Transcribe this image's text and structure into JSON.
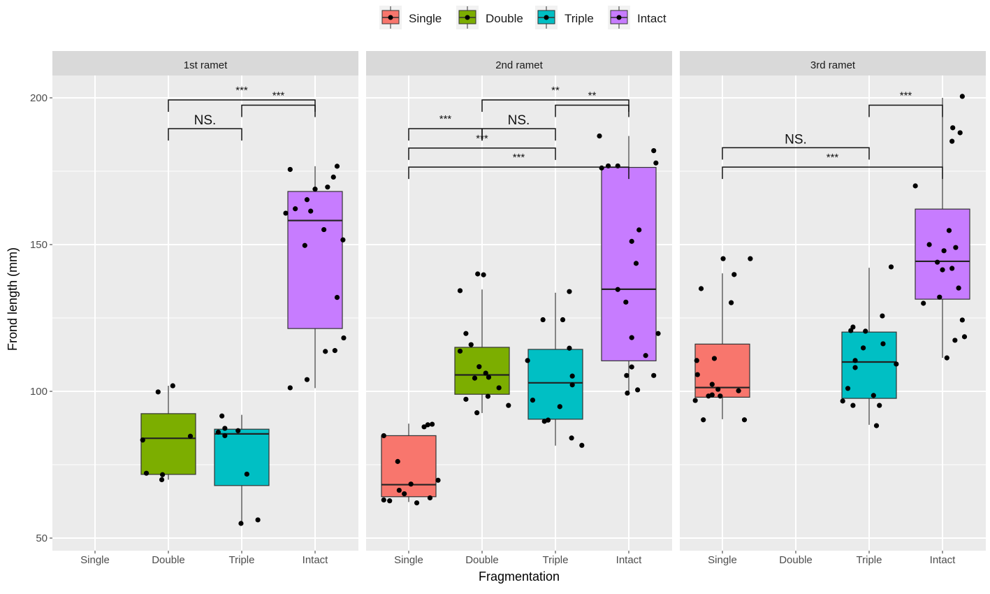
{
  "chart_data": {
    "type": "boxplot",
    "xlabel": "Fragmentation",
    "ylabel": "Frond length (mm)",
    "ylim": [
      47,
      207
    ],
    "yticks": [
      50,
      100,
      150,
      200
    ],
    "categories": [
      "Single",
      "Double",
      "Triple",
      "Intact"
    ],
    "colors": {
      "Single": "#F8766D",
      "Double": "#7CAE00",
      "Triple": "#00BFC4",
      "Intact": "#C77CFF"
    },
    "legend": {
      "position": "top",
      "items": [
        "Single",
        "Double",
        "Triple",
        "Intact"
      ]
    },
    "grid": true,
    "panels": [
      {
        "title": "1st ramet",
        "boxes": [
          {
            "category": "Double",
            "min": 69.9,
            "q1": 71.7,
            "median": 84.0,
            "q3": 92.4,
            "max": 101.9
          },
          {
            "category": "Triple",
            "min": 55.0,
            "q1": 67.9,
            "median": 85.5,
            "q3": 87.1,
            "max": 92.0
          },
          {
            "category": "Intact",
            "min": 101.1,
            "q1": 121.4,
            "median": 158.2,
            "q3": 168.1,
            "max": 176.7
          }
        ],
        "points": {
          "Double": [
            [
              -0.35,
              83.4
            ],
            [
              -0.3,
              72.1
            ],
            [
              -0.08,
              71.6
            ],
            [
              -0.09,
              69.9
            ],
            [
              -0.14,
              99.8
            ],
            [
              0.06,
              101.9
            ],
            [
              0.3,
              84.7
            ]
          ],
          "Triple": [
            [
              -0.27,
              91.6
            ],
            [
              -0.23,
              87.4
            ],
            [
              -0.32,
              86.1
            ],
            [
              -0.05,
              86.6
            ],
            [
              -0.23,
              84.9
            ],
            [
              0.07,
              71.8
            ],
            [
              -0.01,
              55.0
            ],
            [
              0.22,
              56.2
            ]
          ],
          "Intact": [
            [
              -0.34,
              175.6
            ],
            [
              0.3,
              176.7
            ],
            [
              0.25,
              173.0
            ],
            [
              0.17,
              169.6
            ],
            [
              0,
              168.9
            ],
            [
              -0.11,
              165.3
            ],
            [
              -0.27,
              162.2
            ],
            [
              -0.06,
              161.4
            ],
            [
              -0.4,
              160.7
            ],
            [
              0.12,
              155.1
            ],
            [
              0.38,
              151.6
            ],
            [
              -0.14,
              149.7
            ],
            [
              0.3,
              132.0
            ],
            [
              0.39,
              118.2
            ],
            [
              0.14,
              113.6
            ],
            [
              0.27,
              113.9
            ],
            [
              -0.11,
              104.0
            ],
            [
              -0.34,
              101.2
            ]
          ]
        },
        "brackets": [
          {
            "from": "Double",
            "to": "Intact",
            "y": 199.3,
            "label": "***"
          },
          {
            "from": "Triple",
            "to": "Intact",
            "y": 197.5,
            "label": "***"
          },
          {
            "from": "Double",
            "to": "Triple",
            "y": 189.5,
            "label": "NS."
          }
        ]
      },
      {
        "title": "2nd ramet",
        "boxes": [
          {
            "category": "Single",
            "min": 62.3,
            "q1": 64.1,
            "median": 68.2,
            "q3": 84.9,
            "max": 89.0
          },
          {
            "category": "Double",
            "min": 92.6,
            "q1": 99.0,
            "median": 105.6,
            "q3": 115.0,
            "max": 134.7
          },
          {
            "category": "Triple",
            "min": 81.5,
            "q1": 90.5,
            "median": 102.9,
            "q3": 114.3,
            "max": 133.6
          },
          {
            "category": "Intact",
            "min": 99.4,
            "q1": 110.4,
            "median": 134.8,
            "q3": 176.3,
            "max": 187.0
          }
        ],
        "points": {
          "Single": [
            [
              -0.34,
              84.9
            ],
            [
              -0.15,
              76.1
            ],
            [
              0.21,
              87.9
            ],
            [
              0.26,
              88.6
            ],
            [
              0.32,
              88.8
            ],
            [
              0.4,
              69.7
            ],
            [
              0.03,
              68.4
            ],
            [
              -0.13,
              66.3
            ],
            [
              -0.06,
              65.1
            ],
            [
              0.29,
              63.7
            ],
            [
              -0.34,
              63.0
            ],
            [
              -0.26,
              62.7
            ],
            [
              0.11,
              62.0
            ]
          ],
          "Double": [
            [
              -0.06,
              140.0
            ],
            [
              0.02,
              139.7
            ],
            [
              -0.3,
              134.3
            ],
            [
              -0.22,
              119.7
            ],
            [
              -0.15,
              115.9
            ],
            [
              -0.3,
              113.7
            ],
            [
              -0.04,
              108.4
            ],
            [
              0.05,
              106.2
            ],
            [
              -0.1,
              104.5
            ],
            [
              0.09,
              104.8
            ],
            [
              0.23,
              101.2
            ],
            [
              -0.22,
              97.3
            ],
            [
              0.08,
              98.3
            ],
            [
              0.36,
              95.2
            ],
            [
              -0.07,
              92.7
            ]
          ],
          "Triple": [
            [
              0.19,
              134.0
            ],
            [
              -0.17,
              124.4
            ],
            [
              0.1,
              124.4
            ],
            [
              0.19,
              114.7
            ],
            [
              -0.38,
              110.5
            ],
            [
              0.23,
              105.2
            ],
            [
              0.23,
              102.2
            ],
            [
              -0.31,
              97.0
            ],
            [
              0.06,
              94.8
            ],
            [
              -0.15,
              89.8
            ],
            [
              -0.1,
              90.2
            ],
            [
              0.22,
              84.1
            ],
            [
              0.36,
              81.6
            ]
          ],
          "Intact": [
            [
              -0.4,
              187.0
            ],
            [
              0.34,
              182.0
            ],
            [
              0.37,
              177.8
            ],
            [
              -0.37,
              176.1
            ],
            [
              -0.28,
              176.8
            ],
            [
              -0.15,
              176.8
            ],
            [
              0.14,
              155.0
            ],
            [
              0.04,
              151.1
            ],
            [
              0.1,
              143.6
            ],
            [
              -0.15,
              134.7
            ],
            [
              -0.04,
              130.4
            ],
            [
              0.4,
              119.7
            ],
            [
              0.04,
              118.3
            ],
            [
              0.23,
              112.2
            ],
            [
              0.04,
              108.3
            ],
            [
              -0.03,
              105.4
            ],
            [
              0.34,
              105.4
            ],
            [
              0.12,
              100.5
            ],
            [
              -0.02,
              99.4
            ]
          ]
        },
        "brackets": [
          {
            "from": "Double",
            "to": "Intact",
            "y": 199.3,
            "label": "**"
          },
          {
            "from": "Triple",
            "to": "Intact",
            "y": 197.5,
            "label": "**"
          },
          {
            "from": "Single",
            "to": "Double",
            "y": 189.5,
            "label": "***"
          },
          {
            "from": "Double",
            "to": "Triple",
            "y": 189.5,
            "label": "NS."
          },
          {
            "from": "Single",
            "to": "Triple",
            "y": 182.9,
            "label": "***"
          },
          {
            "from": "Single",
            "to": "Intact",
            "y": 176.4,
            "label": "***"
          }
        ]
      },
      {
        "title": "3rd ramet",
        "boxes": [
          {
            "category": "Single",
            "min": 90.5,
            "q1": 98.0,
            "median": 101.3,
            "q3": 116.1,
            "max": 140.2
          },
          {
            "category": "Triple",
            "min": 88.6,
            "q1": 97.6,
            "median": 110.0,
            "q3": 120.2,
            "max": 142.1
          },
          {
            "category": "Intact",
            "min": 111.4,
            "q1": 131.4,
            "median": 144.3,
            "q3": 162.1,
            "max": 200.0
          }
        ],
        "points": {
          "Single": [
            [
              0.01,
              145.2
            ],
            [
              0.38,
              145.2
            ],
            [
              0.16,
              139.8
            ],
            [
              -0.29,
              135.0
            ],
            [
              0.12,
              130.2
            ],
            [
              -0.11,
              111.2
            ],
            [
              -0.35,
              110.5
            ],
            [
              -0.34,
              105.7
            ],
            [
              -0.14,
              102.4
            ],
            [
              -0.06,
              100.7
            ],
            [
              0.22,
              100.2
            ],
            [
              -0.19,
              98.4
            ],
            [
              -0.14,
              98.8
            ],
            [
              -0.03,
              98.4
            ],
            [
              -0.37,
              96.9
            ],
            [
              -0.26,
              90.3
            ],
            [
              0.3,
              90.3
            ]
          ],
          "Triple": [
            [
              0.3,
              142.4
            ],
            [
              0.18,
              125.7
            ],
            [
              -0.22,
              121.9
            ],
            [
              -0.25,
              120.7
            ],
            [
              -0.05,
              120.5
            ],
            [
              0.19,
              116.2
            ],
            [
              -0.08,
              114.8
            ],
            [
              -0.19,
              110.5
            ],
            [
              0.37,
              109.3
            ],
            [
              -0.19,
              108.1
            ],
            [
              -0.29,
              101.0
            ],
            [
              0.06,
              98.6
            ],
            [
              -0.36,
              96.7
            ],
            [
              -0.22,
              95.2
            ],
            [
              0.14,
              95.2
            ],
            [
              0.1,
              88.3
            ]
          ],
          "Intact": [
            [
              0.27,
              200.5
            ],
            [
              0.14,
              189.8
            ],
            [
              0.24,
              188.1
            ],
            [
              0.13,
              185.2
            ],
            [
              -0.37,
              170.0
            ],
            [
              0.09,
              154.8
            ],
            [
              -0.18,
              150.0
            ],
            [
              0.02,
              147.9
            ],
            [
              0.18,
              149.0
            ],
            [
              -0.07,
              144.0
            ],
            [
              0,
              141.4
            ],
            [
              0.13,
              141.9
            ],
            [
              0.22,
              135.2
            ],
            [
              -0.04,
              132.1
            ],
            [
              -0.26,
              130.0
            ],
            [
              0.27,
              124.3
            ],
            [
              0.17,
              117.4
            ],
            [
              0.3,
              118.6
            ],
            [
              0.06,
              111.4
            ]
          ]
        },
        "brackets": [
          {
            "from": "Triple",
            "to": "Intact",
            "y": 197.5,
            "label": "***"
          },
          {
            "from": "Single",
            "to": "Triple",
            "y": 183.0,
            "label": "NS."
          },
          {
            "from": "Single",
            "to": "Intact",
            "y": 176.4,
            "label": "***"
          }
        ]
      }
    ]
  }
}
